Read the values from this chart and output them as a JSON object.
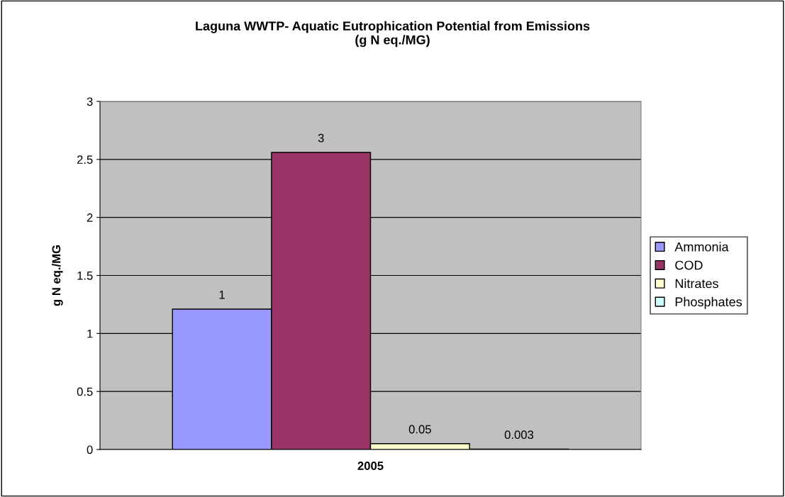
{
  "chart_data": {
    "type": "bar",
    "title": "Laguna WWTP- Aquatic Eutrophication Potential from Emissions\n(g N eq./MG)",
    "ylabel": "g N eq./MG",
    "categories": [
      "2005"
    ],
    "series": [
      {
        "name": "Ammonia",
        "color": "#9999ff",
        "values": [
          1.21
        ],
        "value_labels": [
          "1"
        ]
      },
      {
        "name": "COD",
        "color": "#993366",
        "values": [
          2.56
        ],
        "value_labels": [
          "3"
        ]
      },
      {
        "name": "Nitrates",
        "color": "#ffffcc",
        "values": [
          0.05
        ],
        "value_labels": [
          "0.05"
        ]
      },
      {
        "name": "Phosphates",
        "color": "#ccffff",
        "values": [
          0.003
        ],
        "value_labels": [
          "0.003"
        ]
      }
    ],
    "ylim": [
      0,
      3
    ],
    "yticks": [
      0,
      0.5,
      1,
      1.5,
      2,
      2.5,
      3
    ],
    "grid": "y",
    "legend": "right"
  }
}
